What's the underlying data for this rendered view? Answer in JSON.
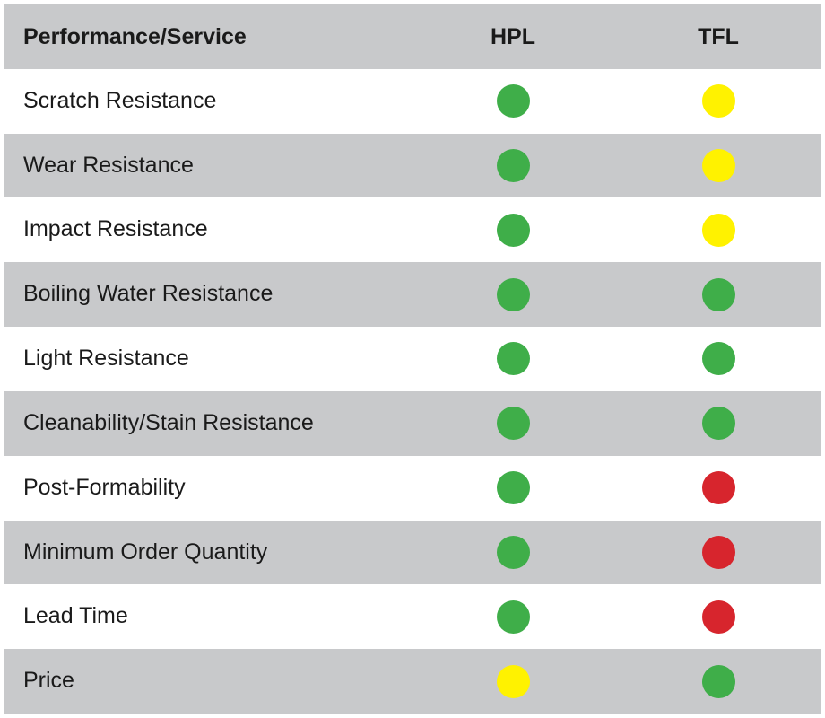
{
  "table": {
    "header": [
      "Performance/Service",
      "HPL",
      "TFL"
    ],
    "rows": [
      [
        "Scratch Resistance",
        "#3fae49",
        "#fff200"
      ],
      [
        "Wear Resistance",
        "#3fae49",
        "#fff200"
      ],
      [
        "Impact Resistance",
        "#3fae49",
        "#fff200"
      ],
      [
        "Boiling Water Resistance",
        "#3fae49",
        "#3fae49"
      ],
      [
        "Light Resistance",
        "#3fae49",
        "#3fae49"
      ],
      [
        "Cleanability/Stain Resistance",
        "#3fae49",
        "#3fae49"
      ],
      [
        "Post-Formability",
        "#3fae49",
        "#d7252d"
      ],
      [
        "Minimum Order Quantity",
        "#3fae49",
        "#d7252d"
      ],
      [
        "Lead Time",
        "#3fae49",
        "#d7252d"
      ],
      [
        "Price",
        "#fff200",
        "#3fae49"
      ]
    ]
  }
}
